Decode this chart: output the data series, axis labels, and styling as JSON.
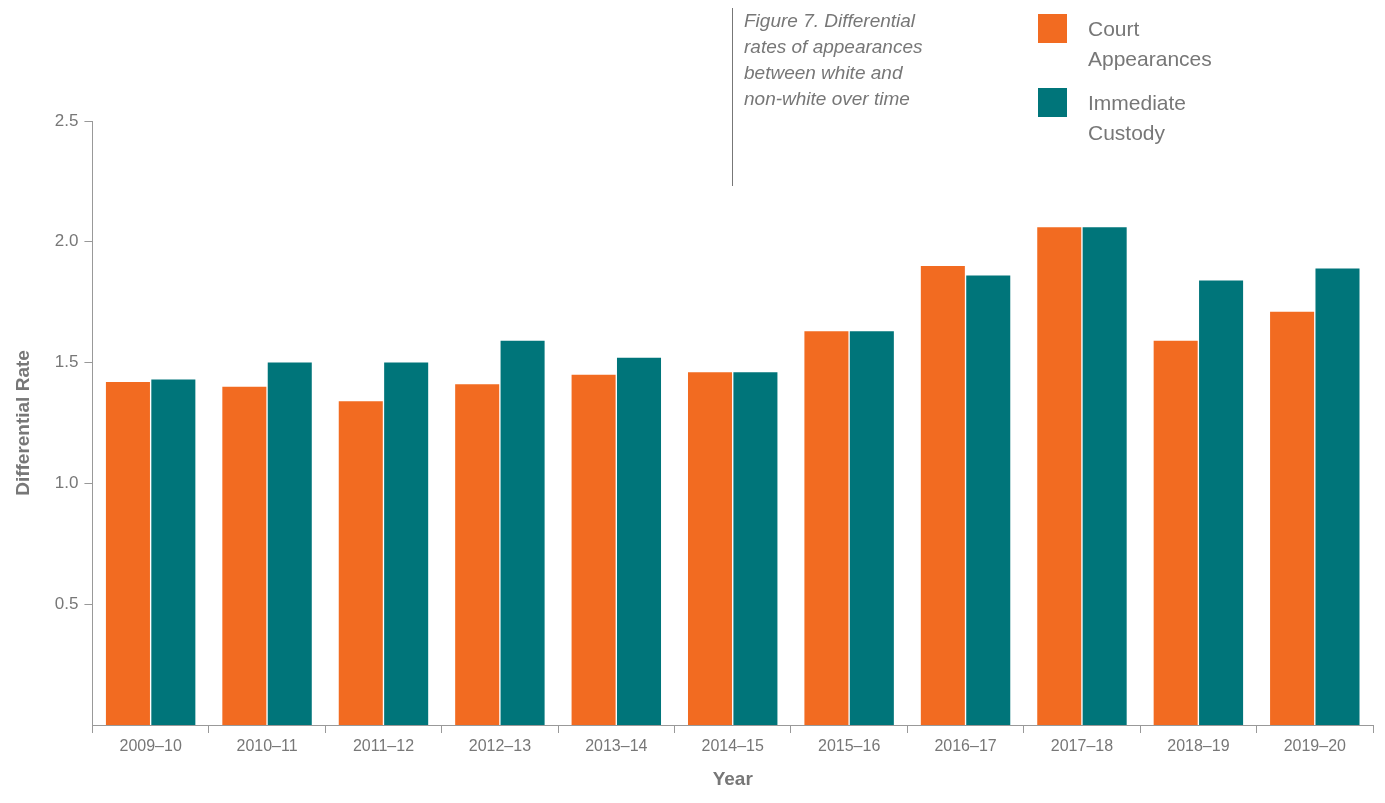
{
  "chart_data": {
    "type": "bar",
    "title": "Figure 7. Differential rates of appearances between white and non-white over time",
    "xlabel": "Year",
    "ylabel": "Differential Rate",
    "categories": [
      "2009–10",
      "2010–11",
      "2011–12",
      "2012–13",
      "2013–14",
      "2014–15",
      "2015–16",
      "2016–17",
      "2017–18",
      "2018–19",
      "2019–20"
    ],
    "series": [
      {
        "name": "Court Appearances",
        "color": "#f26b21",
        "values": [
          1.42,
          1.4,
          1.34,
          1.41,
          1.45,
          1.46,
          1.63,
          1.9,
          2.06,
          1.59,
          1.71
        ]
      },
      {
        "name": "Immediate Custody",
        "color": "#00757a",
        "values": [
          1.43,
          1.5,
          1.5,
          1.59,
          1.52,
          1.46,
          1.63,
          1.86,
          2.06,
          1.84,
          1.89
        ]
      }
    ],
    "ylim": [
      0,
      2.5
    ],
    "yticks": [
      {
        "value": 0.5,
        "label": "0.5"
      },
      {
        "value": 1,
        "label": "1.0"
      },
      {
        "value": 1.5,
        "label": "1.5"
      },
      {
        "value": 2,
        "label": "2.0"
      },
      {
        "value": 2.5,
        "label": "2.5"
      }
    ],
    "legend": "top right"
  }
}
